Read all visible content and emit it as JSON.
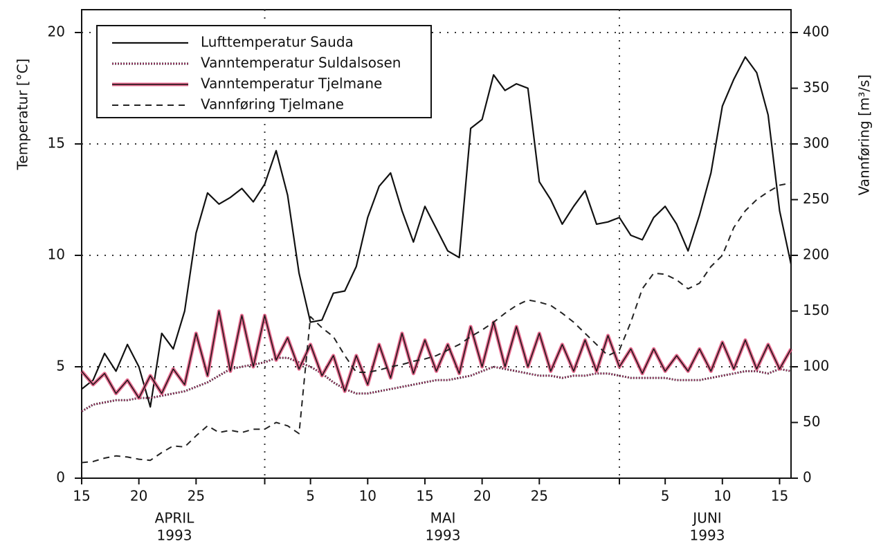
{
  "chart_data": {
    "type": "line",
    "ylabel": "Temperatur [°C]",
    "y2label": "Vannføring [m³/s]",
    "x": [
      "1993-04-15",
      "1993-04-16",
      "1993-04-17",
      "1993-04-18",
      "1993-04-19",
      "1993-04-20",
      "1993-04-21",
      "1993-04-22",
      "1993-04-23",
      "1993-04-24",
      "1993-04-25",
      "1993-04-26",
      "1993-04-27",
      "1993-04-28",
      "1993-04-29",
      "1993-04-30",
      "1993-05-01",
      "1993-05-02",
      "1993-05-03",
      "1993-05-04",
      "1993-05-05",
      "1993-05-06",
      "1993-05-07",
      "1993-05-08",
      "1993-05-09",
      "1993-05-10",
      "1993-05-11",
      "1993-05-12",
      "1993-05-13",
      "1993-05-14",
      "1993-05-15",
      "1993-05-16",
      "1993-05-17",
      "1993-05-18",
      "1993-05-19",
      "1993-05-20",
      "1993-05-21",
      "1993-05-22",
      "1993-05-23",
      "1993-05-24",
      "1993-05-25",
      "1993-05-26",
      "1993-05-27",
      "1993-05-28",
      "1993-05-29",
      "1993-05-30",
      "1993-05-31",
      "1993-06-01",
      "1993-06-02",
      "1993-06-03",
      "1993-06-04",
      "1993-06-05",
      "1993-06-06",
      "1993-06-07",
      "1993-06-08",
      "1993-06-09",
      "1993-06-10",
      "1993-06-11",
      "1993-06-12",
      "1993-06-13",
      "1993-06-14",
      "1993-06-15",
      "1993-06-16"
    ],
    "series": [
      {
        "name": "Lufttemperatur Sauda",
        "color": "#111111",
        "style": "solid",
        "values": [
          4.0,
          4.4,
          5.6,
          4.8,
          6.0,
          5.0,
          3.2,
          6.5,
          5.8,
          7.5,
          11.0,
          12.8,
          12.3,
          12.6,
          13.0,
          12.4,
          13.2,
          14.7,
          12.7,
          9.2,
          7.0,
          7.1,
          8.3,
          8.4,
          9.5,
          11.7,
          13.1,
          13.7,
          12.0,
          10.6,
          12.2,
          11.2,
          10.2,
          9.9,
          15.7,
          16.1,
          18.1,
          17.4,
          17.7,
          17.5,
          13.3,
          12.5,
          11.4,
          12.2,
          12.9,
          11.4,
          11.5,
          11.7,
          10.9,
          10.7,
          11.7,
          12.2,
          11.4,
          10.2,
          11.8,
          13.7,
          16.7,
          17.9,
          18.9,
          18.2,
          16.3,
          12.0,
          9.6
        ]
      },
      {
        "name": "Vanntemperatur Suldalsosen",
        "color": "#b0306a",
        "style": "dotted",
        "values": [
          3.0,
          3.3,
          3.4,
          3.5,
          3.5,
          3.6,
          3.6,
          3.7,
          3.8,
          3.9,
          4.1,
          4.3,
          4.6,
          4.9,
          5.0,
          5.1,
          5.2,
          5.4,
          5.4,
          5.2,
          5.0,
          4.7,
          4.3,
          4.0,
          3.8,
          3.8,
          3.9,
          4.0,
          4.1,
          4.2,
          4.3,
          4.4,
          4.4,
          4.5,
          4.6,
          4.8,
          5.0,
          4.9,
          4.8,
          4.7,
          4.6,
          4.6,
          4.5,
          4.6,
          4.6,
          4.7,
          4.7,
          4.6,
          4.5,
          4.5,
          4.5,
          4.5,
          4.4,
          4.4,
          4.4,
          4.5,
          4.6,
          4.7,
          4.8,
          4.8,
          4.7,
          4.9,
          4.8
        ]
      },
      {
        "name": "Vanntemperatur Tjelmane",
        "color": "#e0507a",
        "style": "double",
        "values": [
          4.8,
          4.2,
          4.7,
          3.8,
          4.4,
          3.6,
          4.6,
          3.8,
          4.9,
          4.2,
          6.5,
          4.6,
          7.5,
          4.8,
          7.3,
          5.0,
          7.3,
          5.3,
          6.3,
          4.9,
          6.0,
          4.6,
          5.5,
          3.9,
          5.5,
          4.2,
          6.0,
          4.5,
          6.5,
          4.7,
          6.2,
          4.8,
          6.0,
          4.7,
          6.8,
          5.0,
          7.0,
          5.0,
          6.8,
          5.0,
          6.5,
          4.8,
          6.0,
          4.8,
          6.2,
          4.8,
          6.4,
          5.0,
          5.8,
          4.7,
          5.8,
          4.8,
          5.5,
          4.8,
          5.8,
          4.8,
          6.1,
          4.9,
          6.2,
          4.9,
          6.0,
          4.9,
          5.8
        ]
      },
      {
        "name": "Vannføring Tjelmane",
        "color": "#222222",
        "style": "dashed",
        "axis": "y2",
        "values": [
          14,
          15,
          18,
          20,
          19,
          17,
          16,
          23,
          29,
          28,
          38,
          47,
          41,
          43,
          41,
          44,
          44,
          50,
          47,
          40,
          145,
          135,
          127,
          110,
          95,
          95,
          97,
          100,
          102,
          105,
          107,
          110,
          115,
          120,
          127,
          133,
          140,
          148,
          155,
          160,
          158,
          155,
          148,
          140,
          130,
          120,
          110,
          115,
          140,
          170,
          184,
          183,
          178,
          170,
          175,
          190,
          200,
          225,
          240,
          250,
          257,
          263,
          265
        ]
      }
    ],
    "xlim": [
      "1993-04-15",
      "1993-06-16"
    ],
    "xticks": [
      {
        "value": "1993-04-15",
        "label": "15"
      },
      {
        "value": "1993-04-20",
        "label": "20"
      },
      {
        "value": "1993-04-25",
        "label": "25"
      },
      {
        "value": "1993-05-05",
        "label": "5"
      },
      {
        "value": "1993-05-10",
        "label": "10"
      },
      {
        "value": "1993-05-15",
        "label": "15"
      },
      {
        "value": "1993-05-20",
        "label": "20"
      },
      {
        "value": "1993-05-25",
        "label": "25"
      },
      {
        "value": "1993-06-05",
        "label": "5"
      },
      {
        "value": "1993-06-10",
        "label": "10"
      },
      {
        "value": "1993-06-15",
        "label": "15"
      }
    ],
    "month_lines": [
      "1993-05-01",
      "1993-06-01"
    ],
    "month_labels": [
      {
        "month": "APRIL",
        "year": "1993"
      },
      {
        "month": "MAI",
        "year": "1993"
      },
      {
        "month": "JUNI",
        "year": "1993"
      }
    ],
    "ylim": [
      0,
      20
    ],
    "yticks": [
      0,
      5,
      10,
      15,
      20
    ],
    "y2lim": [
      0,
      400
    ],
    "y2ticks": [
      0,
      50,
      100,
      150,
      200,
      250,
      300,
      350,
      400
    ],
    "grid": true,
    "legend": "upper left"
  }
}
